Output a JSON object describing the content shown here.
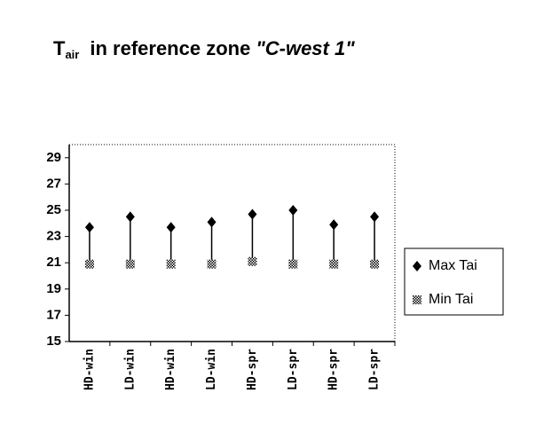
{
  "chart_data": {
    "type": "highlow",
    "title": {
      "main": "T",
      "sub": "air",
      "rest": "in reference zone",
      "quoted": "\"C-west 1\""
    },
    "categories": [
      "HD-win",
      "LD-win",
      "HD-win",
      "LD-win",
      "HD-spr",
      "LD-spr",
      "HD-spr",
      "LD-spr"
    ],
    "series": [
      {
        "name": "Max Tai",
        "color": "#000000",
        "values": [
          23.7,
          24.5,
          23.7,
          24.1,
          24.7,
          25.0,
          23.9,
          24.5
        ]
      },
      {
        "name": "Min Tai",
        "color": "#555555",
        "values": [
          20.9,
          20.9,
          20.9,
          20.9,
          21.1,
          20.9,
          20.9,
          20.9
        ]
      }
    ],
    "ylim": [
      15,
      30
    ],
    "yticks": [
      15,
      17,
      19,
      21,
      23,
      25,
      27,
      29
    ],
    "legend": "right"
  }
}
